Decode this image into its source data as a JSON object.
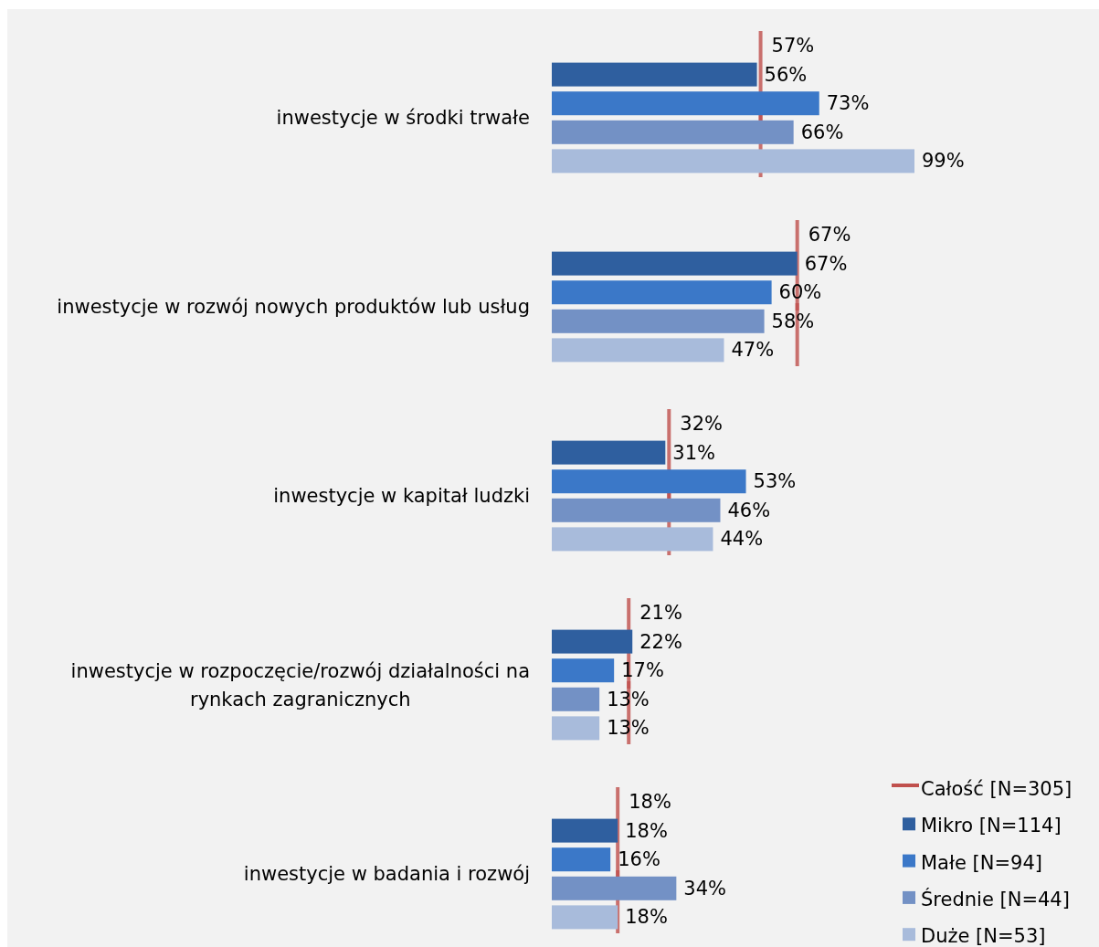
{
  "chart_data": {
    "type": "bar",
    "orientation": "horizontal",
    "legend": "bottom right",
    "categories": [
      "inwestycje w środki trwałe",
      "inwestycje w rozwój nowych produktów lub usług",
      "inwestycje w kapitał ludzki",
      "inwestycje w rozpoczęcie/rozwój działalności na rynkach zagranicznych",
      "inwestycje w badania i rozwój"
    ],
    "annotations": [
      "57%",
      "67%",
      "32%",
      "21%",
      "18%"
    ],
    "series": [
      {
        "name": "Całość [N=305]",
        "type": "scatter",
        "color": "#c0504d",
        "values": [
          57,
          67,
          32,
          21,
          18
        ]
      },
      {
        "name": "Mikro [N=114]",
        "color": "#2f5f9f",
        "values": [
          56,
          67,
          31,
          22,
          18
        ],
        "value_labels": [
          "56%",
          "67%",
          "31%",
          "22%",
          "18%"
        ]
      },
      {
        "name": "Małe [N=94]",
        "color": "#3b78c8",
        "values": [
          73,
          60,
          53,
          17,
          16
        ],
        "value_labels": [
          "73%",
          "60%",
          "53%",
          "17%",
          "16%"
        ]
      },
      {
        "name": "Średnie [N=44]",
        "color": "#7391c5",
        "values": [
          66,
          58,
          46,
          13,
          34
        ],
        "value_labels": [
          "66%",
          "58%",
          "46%",
          "13%",
          "34%"
        ]
      },
      {
        "name": "Duże [N=53]",
        "color": "#a8bbdb",
        "values": [
          99,
          47,
          44,
          13,
          18
        ],
        "value_labels": [
          "99%",
          "47%",
          "44%",
          "13%",
          "18%"
        ]
      }
    ]
  }
}
